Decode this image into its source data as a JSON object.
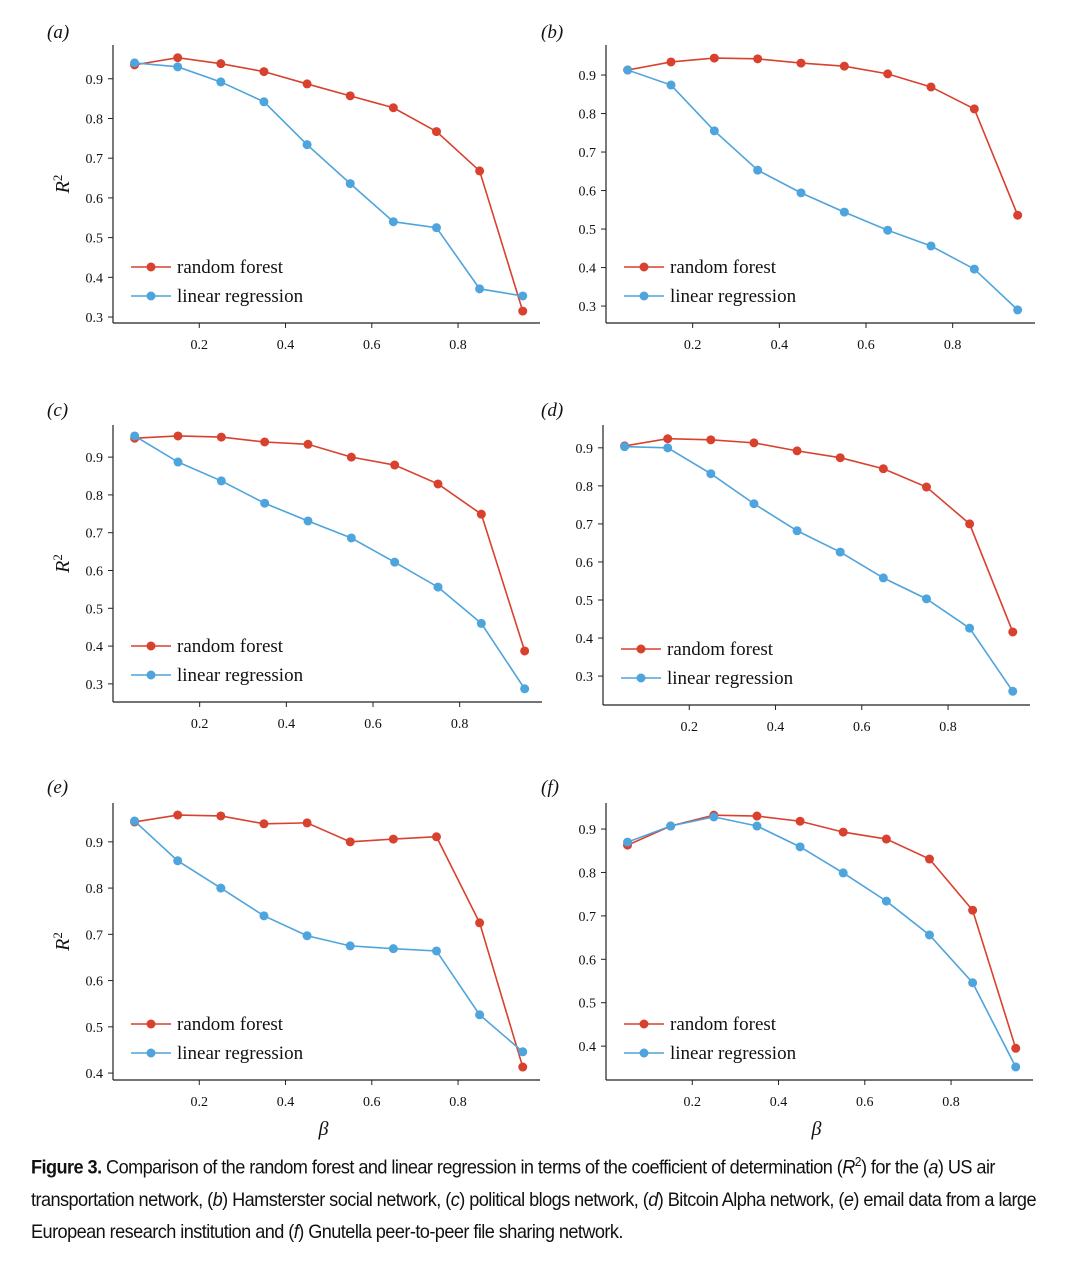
{
  "colors": {
    "random_forest": "#d9412f",
    "linear_regression": "#4ea4dc"
  },
  "chart_data": [
    {
      "type": "line",
      "panel": "(a)",
      "title": "US air transportation network",
      "xlabel": "",
      "ylabel": "R2",
      "xlim": [
        0,
        0.99
      ],
      "ylim": [
        0.285,
        0.985
      ],
      "x": [
        0.05,
        0.15,
        0.25,
        0.35,
        0.45,
        0.55,
        0.65,
        0.75,
        0.85,
        0.95
      ],
      "xticks": [
        "0.2",
        "0.4",
        "0.6",
        "0.8"
      ],
      "yticks": [
        "0.3",
        "0.4",
        "0.5",
        "0.6",
        "0.7",
        "0.8",
        "0.9"
      ],
      "series": [
        {
          "name": "random forest",
          "values": [
            0.935,
            0.953,
            0.938,
            0.918,
            0.887,
            0.857,
            0.827,
            0.767,
            0.668,
            0.315
          ]
        },
        {
          "name": "linear regression",
          "values": [
            0.94,
            0.93,
            0.892,
            0.842,
            0.734,
            0.636,
            0.54,
            0.525,
            0.371,
            0.353
          ]
        }
      ],
      "legend": "lower-left"
    },
    {
      "type": "line",
      "panel": "(b)",
      "title": "Hamsterster social network",
      "xlabel": "",
      "ylabel": "",
      "xlim": [
        0,
        0.99
      ],
      "ylim": [
        0.256,
        0.978
      ],
      "x": [
        0.05,
        0.15,
        0.25,
        0.35,
        0.45,
        0.55,
        0.65,
        0.75,
        0.85,
        0.95
      ],
      "xticks": [
        "0.2",
        "0.4",
        "0.6",
        "0.8"
      ],
      "yticks": [
        "0.3",
        "0.4",
        "0.5",
        "0.6",
        "0.7",
        "0.8",
        "0.9"
      ],
      "series": [
        {
          "name": "random forest",
          "values": [
            0.913,
            0.934,
            0.944,
            0.942,
            0.931,
            0.923,
            0.903,
            0.869,
            0.812,
            0.536
          ]
        },
        {
          "name": "linear regression",
          "values": [
            0.913,
            0.874,
            0.755,
            0.653,
            0.594,
            0.544,
            0.497,
            0.456,
            0.396,
            0.29
          ]
        }
      ],
      "legend": "lower-left"
    },
    {
      "type": "line",
      "panel": "(c)",
      "title": "political blogs network",
      "xlabel": "",
      "ylabel": "R2",
      "xlim": [
        0,
        0.99
      ],
      "ylim": [
        0.252,
        0.985
      ],
      "x": [
        0.05,
        0.15,
        0.25,
        0.35,
        0.45,
        0.55,
        0.65,
        0.75,
        0.85,
        0.95
      ],
      "xticks": [
        "0.2",
        "0.4",
        "0.6",
        "0.8"
      ],
      "yticks": [
        "0.3",
        "0.4",
        "0.5",
        "0.6",
        "0.7",
        "0.8",
        "0.9"
      ],
      "series": [
        {
          "name": "random forest",
          "values": [
            0.95,
            0.956,
            0.953,
            0.94,
            0.934,
            0.9,
            0.879,
            0.829,
            0.749,
            0.387
          ]
        },
        {
          "name": "linear regression",
          "values": [
            0.956,
            0.887,
            0.837,
            0.778,
            0.731,
            0.686,
            0.622,
            0.556,
            0.46,
            0.287
          ]
        }
      ],
      "legend": "lower-left"
    },
    {
      "type": "line",
      "panel": "(d)",
      "title": "Bitcoin Alpha network",
      "xlabel": "",
      "ylabel": "",
      "xlim": [
        0,
        0.99
      ],
      "ylim": [
        0.224,
        0.96
      ],
      "x": [
        0.05,
        0.15,
        0.25,
        0.35,
        0.45,
        0.55,
        0.65,
        0.75,
        0.85,
        0.95
      ],
      "xticks": [
        "0.2",
        "0.4",
        "0.6",
        "0.8"
      ],
      "yticks": [
        "0.3",
        "0.4",
        "0.5",
        "0.6",
        "0.7",
        "0.8",
        "0.9"
      ],
      "series": [
        {
          "name": "random forest",
          "values": [
            0.905,
            0.924,
            0.921,
            0.913,
            0.892,
            0.874,
            0.845,
            0.797,
            0.7,
            0.416
          ]
        },
        {
          "name": "linear regression",
          "values": [
            0.903,
            0.9,
            0.832,
            0.753,
            0.682,
            0.626,
            0.558,
            0.503,
            0.426,
            0.26
          ]
        }
      ],
      "legend": "lower-left"
    },
    {
      "type": "line",
      "panel": "(e)",
      "title": "email data from a large European research institution",
      "xlabel": "β",
      "ylabel": "R2",
      "xlim": [
        0,
        0.99
      ],
      "ylim": [
        0.385,
        0.984
      ],
      "x": [
        0.05,
        0.15,
        0.25,
        0.35,
        0.45,
        0.55,
        0.65,
        0.75,
        0.85,
        0.95
      ],
      "xticks": [
        "0.2",
        "0.4",
        "0.6",
        "0.8"
      ],
      "yticks": [
        "0.4",
        "0.5",
        "0.6",
        "0.7",
        "0.8",
        "0.9"
      ],
      "series": [
        {
          "name": "random forest",
          "values": [
            0.943,
            0.958,
            0.956,
            0.939,
            0.941,
            0.9,
            0.906,
            0.911,
            0.725,
            0.413
          ]
        },
        {
          "name": "linear regression",
          "values": [
            0.945,
            0.859,
            0.8,
            0.74,
            0.697,
            0.675,
            0.669,
            0.664,
            0.526,
            0.446
          ]
        }
      ],
      "legend": "lower-left"
    },
    {
      "type": "line",
      "panel": "(f)",
      "title": "Gnutella peer-to-peer file sharing network",
      "xlabel": "β",
      "ylabel": "",
      "xlim": [
        0,
        0.99
      ],
      "ylim": [
        0.322,
        0.96
      ],
      "x": [
        0.05,
        0.15,
        0.25,
        0.35,
        0.45,
        0.55,
        0.65,
        0.75,
        0.85,
        0.95
      ],
      "xticks": [
        "0.2",
        "0.4",
        "0.6",
        "0.8"
      ],
      "yticks": [
        "0.4",
        "0.5",
        "0.6",
        "0.7",
        "0.8",
        "0.9"
      ],
      "series": [
        {
          "name": "random forest",
          "values": [
            0.863,
            0.907,
            0.932,
            0.93,
            0.918,
            0.893,
            0.877,
            0.831,
            0.713,
            0.395
          ]
        },
        {
          "name": "linear regression",
          "values": [
            0.87,
            0.907,
            0.928,
            0.907,
            0.859,
            0.799,
            0.734,
            0.656,
            0.546,
            0.352
          ]
        }
      ],
      "legend": "lower-left"
    }
  ],
  "caption": [
    {
      "t": "Figure 3.",
      "s": "b"
    },
    {
      "t": " Comparison of the random forest and linear regression in terms of the coefficient of determination (",
      "s": ""
    },
    {
      "t": "R",
      "s": "i"
    },
    {
      "t": "2",
      "s": "sup"
    },
    {
      "t": ") for the (",
      "s": ""
    },
    {
      "t": "a",
      "s": "i"
    },
    {
      "t": ") US air transportation network, (",
      "s": ""
    },
    {
      "t": "b",
      "s": "i"
    },
    {
      "t": ") Hamsterster social network, (",
      "s": ""
    },
    {
      "t": "c",
      "s": "i"
    },
    {
      "t": ") political blogs network, (",
      "s": ""
    },
    {
      "t": "d",
      "s": "i"
    },
    {
      "t": ") Bitcoin Alpha network, (",
      "s": ""
    },
    {
      "t": "e",
      "s": "i"
    },
    {
      "t": ") email data from a large European research institution and (",
      "s": ""
    },
    {
      "t": "f",
      "s": "i"
    },
    {
      "t": ") Gnutella peer-to-peer file sharing network.",
      "s": ""
    }
  ]
}
